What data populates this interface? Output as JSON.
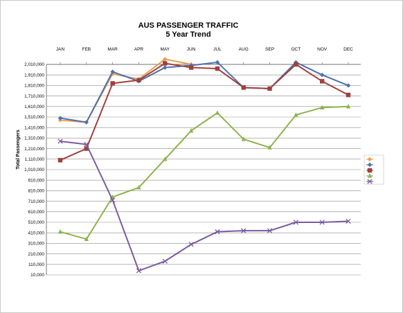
{
  "chart_data": {
    "type": "line",
    "title": "AUS PASSENGER TRAFFIC",
    "subtitle": "5 Year Trend",
    "xlabel": "",
    "ylabel": "Total Passengers",
    "categories": [
      "JAN",
      "FEB",
      "MAR",
      "APR",
      "MAY",
      "JUN",
      "JUL",
      "AUG",
      "SEP",
      "OCT",
      "NOV",
      "DEC"
    ],
    "ylim": [
      10000,
      2010000
    ],
    "yticks": [
      10000,
      110000,
      210000,
      310000,
      410000,
      510000,
      610000,
      710000,
      810000,
      910000,
      1010000,
      1110000,
      1210000,
      1310000,
      1410000,
      1510000,
      1610000,
      1710000,
      1810000,
      1910000,
      2010000
    ],
    "ytick_labels": [
      "10,000",
      "110,000",
      "210,000",
      "310,000",
      "410,000",
      "510,000",
      "610,000",
      "710,000",
      "810,000",
      "910,000",
      "1,010,000",
      "1,110,000",
      "1,210,000",
      "1,310,000",
      "1,410,000",
      "1,510,000",
      "1,610,000",
      "1,710,000",
      "1,810,000",
      "1,910,000",
      "2,010,000"
    ],
    "grid": true,
    "legend_position": "right",
    "series": [
      {
        "name": "",
        "color": "#e8a050",
        "marker": "diamond",
        "values": [
          1480000,
          1460000,
          1920000,
          1870000,
          2060000,
          2010000,
          null,
          null,
          null,
          null,
          null,
          null
        ]
      },
      {
        "name": "",
        "color": "#4f6fae",
        "marker": "diamond",
        "values": [
          1500000,
          1460000,
          1940000,
          1850000,
          1980000,
          2000000,
          2030000,
          1790000,
          1780000,
          2030000,
          1910000,
          1810000
        ]
      },
      {
        "name": "",
        "color": "#a0403c",
        "marker": "square",
        "values": [
          1100000,
          1210000,
          1830000,
          1860000,
          2020000,
          1980000,
          1970000,
          1790000,
          1780000,
          2010000,
          1850000,
          1720000
        ]
      },
      {
        "name": "",
        "color": "#8db34a",
        "marker": "triangle",
        "values": [
          420000,
          350000,
          750000,
          840000,
          1110000,
          1380000,
          1550000,
          1300000,
          1220000,
          1530000,
          1600000,
          1610000
        ]
      },
      {
        "name": "",
        "color": "#7b5aa0",
        "marker": "x",
        "values": [
          1280000,
          1250000,
          720000,
          50000,
          140000,
          300000,
          420000,
          430000,
          430000,
          510000,
          510000,
          520000
        ]
      }
    ]
  }
}
